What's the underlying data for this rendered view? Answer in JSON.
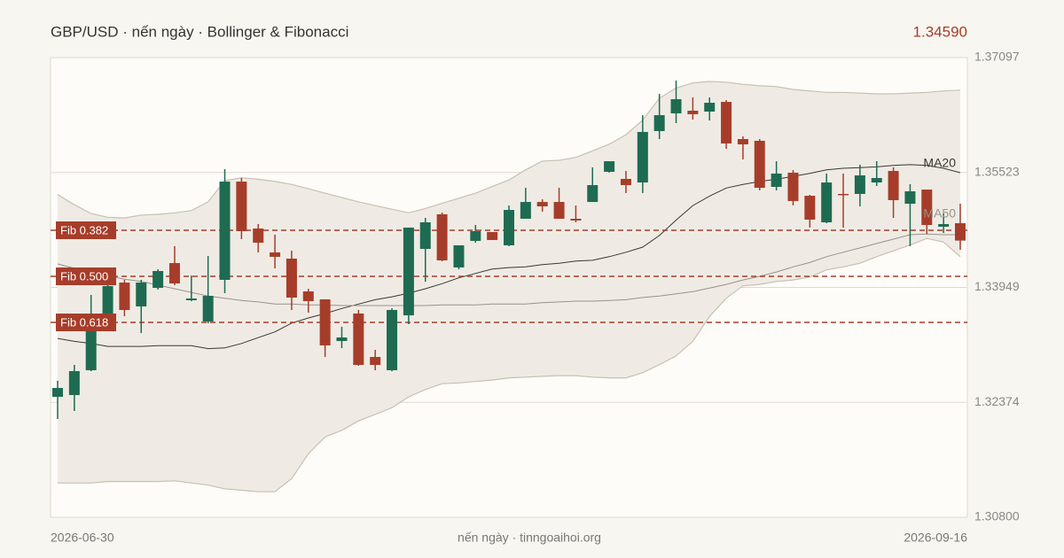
{
  "chart_data": {
    "type": "candlestick",
    "title": "GBP/USD · nến ngày · Bollinger & Fibonacci",
    "last_price": "1.34590",
    "source": "nến ngày · tinngoaihoi.org",
    "categories": [
      "2026-06-30",
      null,
      null,
      null,
      null,
      null,
      null,
      null,
      null,
      null,
      null,
      null,
      null,
      null,
      null,
      null,
      null,
      null,
      null,
      null,
      null,
      null,
      null,
      null,
      null,
      null,
      null,
      null,
      null,
      null,
      null,
      null,
      null,
      null,
      null,
      null,
      null,
      null,
      null,
      null,
      null,
      null,
      null,
      null,
      null,
      null,
      null,
      null,
      null,
      null,
      null,
      null,
      null,
      null,
      "2026-09-16"
    ],
    "open": [
      1.3245,
      1.32474,
      1.32814,
      1.33506,
      1.34015,
      1.33688,
      1.33942,
      1.34282,
      1.33773,
      1.33481,
      1.34052,
      1.35398,
      1.34755,
      1.34428,
      1.34343,
      1.33894,
      1.33785,
      1.33214,
      1.33591,
      1.32996,
      1.32814,
      1.33566,
      1.34476,
      1.3495,
      1.34222,
      1.34586,
      1.34707,
      1.34525,
      1.34889,
      1.35119,
      1.35119,
      1.34889,
      1.35119,
      1.35532,
      1.35435,
      1.35386,
      1.3609,
      1.36333,
      1.36369,
      1.36357,
      1.3649,
      1.35981,
      1.35957,
      1.35326,
      1.3552,
      1.35204,
      1.3484,
      1.35229,
      1.35229,
      1.35386,
      1.35544,
      1.35095,
      1.35289,
      1.3478,
      1.34828
    ],
    "high": [
      1.32669,
      1.32887,
      1.33845,
      1.34027,
      1.34052,
      1.34052,
      1.34197,
      1.34513,
      1.34112,
      1.34379,
      1.35568,
      1.35447,
      1.34816,
      1.3467,
      1.34452,
      1.3393,
      1.33785,
      1.33409,
      1.33639,
      1.33093,
      1.33663,
      1.34768,
      1.34901,
      1.34974,
      1.34525,
      1.34804,
      1.34707,
      1.35071,
      1.35313,
      1.35156,
      1.35313,
      1.35071,
      1.35593,
      1.35677,
      1.35544,
      1.36308,
      1.366,
      1.36782,
      1.36551,
      1.36551,
      1.36515,
      1.36017,
      1.35981,
      1.35677,
      1.35556,
      1.35216,
      1.35508,
      1.35508,
      1.35629,
      1.35677,
      1.35593,
      1.35362,
      1.35289,
      1.34962,
      1.35095
    ],
    "low": [
      1.32147,
      1.32256,
      1.328,
      1.33396,
      1.33554,
      1.33324,
      1.33918,
      1.33979,
      1.3376,
      1.33457,
      1.3387,
      1.3461,
      1.34428,
      1.34209,
      1.33639,
      1.33603,
      1.32996,
      1.33117,
      1.32875,
      1.32814,
      1.328,
      1.33445,
      1.34027,
      1.34306,
      1.34197,
      1.34561,
      1.34598,
      1.34513,
      1.34889,
      1.34986,
      1.34889,
      1.3484,
      1.35119,
      1.3552,
      1.35241,
      1.35241,
      1.35981,
      1.36199,
      1.36248,
      1.36236,
      1.35847,
      1.35702,
      1.35277,
      1.35277,
      1.35071,
      1.34768,
      1.34828,
      1.34768,
      1.35059,
      1.35338,
      1.34901,
      1.34513,
      1.34683,
      1.34695,
      1.34464
    ],
    "close": [
      1.32571,
      1.32802,
      1.33506,
      1.33967,
      1.33639,
      1.34015,
      1.34173,
      1.34003,
      1.33797,
      1.33833,
      1.35398,
      1.34719,
      1.34561,
      1.34367,
      1.33809,
      1.3376,
      1.33154,
      1.33263,
      1.32887,
      1.32887,
      1.33639,
      1.34768,
      1.3484,
      1.34319,
      1.34525,
      1.34719,
      1.34598,
      1.3501,
      1.35119,
      1.35059,
      1.34889,
      1.34865,
      1.3535,
      1.35677,
      1.3535,
      1.36078,
      1.36308,
      1.36527,
      1.36321,
      1.36478,
      1.3592,
      1.35908,
      1.35313,
      1.35508,
      1.35132,
      1.34877,
      1.35386,
      1.35216,
      1.35483,
      1.35447,
      1.35144,
      1.35265,
      1.34804,
      1.34816,
      1.3459
    ],
    "up_color": "#1e6b52",
    "down_color": "#a63d2a",
    "bollinger": {
      "color": "#c9bfb3",
      "fill": "#efebe4",
      "upper": [
        1.3522,
        1.3508,
        1.3496,
        1.3491,
        1.349,
        1.3494,
        1.3495,
        1.3497,
        1.35,
        1.3512,
        1.3541,
        1.3545,
        1.3543,
        1.354,
        1.3536,
        1.353,
        1.3524,
        1.3518,
        1.3512,
        1.3507,
        1.3502,
        1.3497,
        1.3503,
        1.351,
        1.3517,
        1.3524,
        1.3533,
        1.3542,
        1.3556,
        1.3568,
        1.3569,
        1.3573,
        1.3582,
        1.3591,
        1.3604,
        1.3624,
        1.3654,
        1.3668,
        1.3675,
        1.3677,
        1.3676,
        1.3673,
        1.3671,
        1.367,
        1.3666,
        1.3664,
        1.3662,
        1.3662,
        1.3661,
        1.366,
        1.366,
        1.3661,
        1.3662,
        1.3664,
        1.3665
      ],
      "lower": [
        1.3127,
        1.3127,
        1.3127,
        1.3129,
        1.3129,
        1.3129,
        1.3129,
        1.313,
        1.3127,
        1.3124,
        1.3119,
        1.3117,
        1.3115,
        1.3115,
        1.3133,
        1.3167,
        1.319,
        1.3199,
        1.3212,
        1.3221,
        1.323,
        1.3245,
        1.3255,
        1.3263,
        1.3264,
        1.3266,
        1.3268,
        1.3271,
        1.3272,
        1.3273,
        1.3274,
        1.3274,
        1.3272,
        1.3271,
        1.3271,
        1.3278,
        1.3289,
        1.3301,
        1.3321,
        1.3355,
        1.338,
        1.3397,
        1.3399,
        1.3403,
        1.3405,
        1.3409,
        1.3419,
        1.3423,
        1.3428,
        1.3437,
        1.3445,
        1.3453,
        1.3462,
        1.3457,
        1.3437
      ]
    },
    "series": [
      {
        "name": "MA20",
        "color": "#3a3633",
        "values": [
          1.3325,
          1.3321,
          1.3318,
          1.3314,
          1.3314,
          1.3314,
          1.3315,
          1.3315,
          1.3315,
          1.3311,
          1.3312,
          1.3318,
          1.3326,
          1.3334,
          1.3346,
          1.3353,
          1.3359,
          1.3366,
          1.3372,
          1.3378,
          1.3382,
          1.3387,
          1.3393,
          1.34,
          1.3408,
          1.3414,
          1.342,
          1.3422,
          1.3423,
          1.3426,
          1.3428,
          1.3431,
          1.3432,
          1.3437,
          1.3443,
          1.345,
          1.3466,
          1.3487,
          1.3507,
          1.352,
          1.3531,
          1.3536,
          1.354,
          1.3543,
          1.3547,
          1.3551,
          1.3556,
          1.3558,
          1.3559,
          1.356,
          1.3562,
          1.3563,
          1.3562,
          1.3558,
          1.3552
        ]
      },
      {
        "name": "MA50",
        "color": "#9a928a",
        "values": [
          1.3427,
          1.3421,
          1.3415,
          1.3411,
          1.3406,
          1.3403,
          1.3398,
          1.3393,
          1.3388,
          1.3383,
          1.338,
          1.3377,
          1.3375,
          1.3372,
          1.3372,
          1.3371,
          1.3371,
          1.337,
          1.337,
          1.337,
          1.337,
          1.337,
          1.337,
          1.3371,
          1.3371,
          1.3371,
          1.3372,
          1.3372,
          1.3372,
          1.3374,
          1.3375,
          1.3376,
          1.3376,
          1.3377,
          1.3378,
          1.3381,
          1.3383,
          1.3386,
          1.3389,
          1.3394,
          1.3399,
          1.3405,
          1.341,
          1.3416,
          1.3423,
          1.3429,
          1.3437,
          1.3443,
          1.3449,
          1.3455,
          1.3461,
          1.3467,
          1.3468,
          1.3467,
          1.3467
        ]
      }
    ],
    "fib_color": "#a63d2a",
    "fib_levels": [
      {
        "label": "Fib 0.382",
        "value": 1.34731
      },
      {
        "label": "Fib 0.500",
        "value": 1.341
      },
      {
        "label": "Fib 0.618",
        "value": 1.33469
      }
    ],
    "ylim": [
      1.308,
      1.37097
    ],
    "yticks": [
      1.37097,
      1.35523,
      1.33949,
      1.32374,
      {
        "value": 1.308,
        "label": "1.30800"
      }
    ],
    "grid": true
  }
}
